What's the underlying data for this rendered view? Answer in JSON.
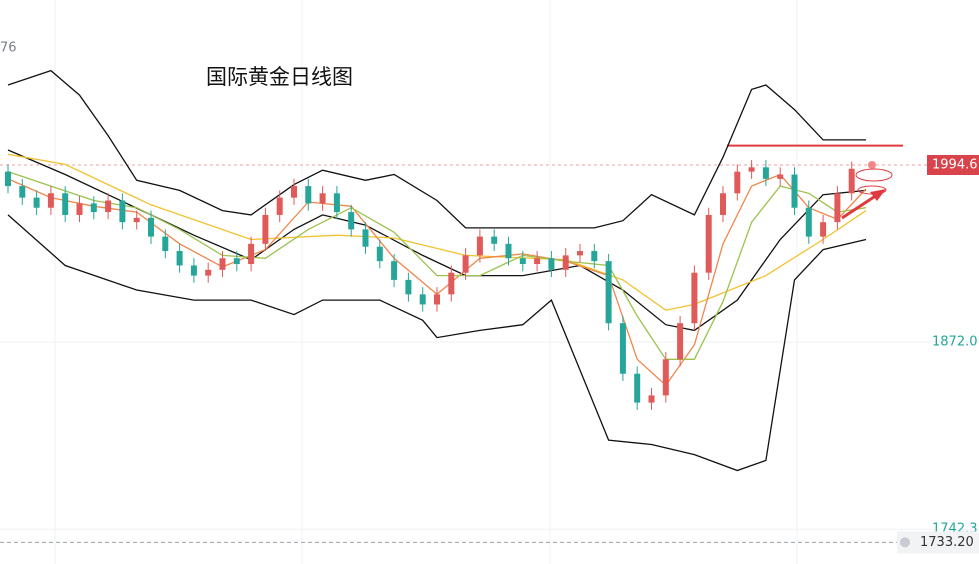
{
  "chart_data": {
    "type": "candlestick",
    "title": "国际黄金日线图",
    "corner_label": "76",
    "ylim": [
      1718.2,
      2108.9
    ],
    "yticks": [
      {
        "value": 1872,
        "label": "1872.0"
      },
      1742.3
    ],
    "last_price": 1994.6,
    "alert_price": {
      "value": 1733.2,
      "label": "1733.20"
    },
    "resistance": 2008,
    "up_color": "#e05a5a",
    "down_color": "#26a69a",
    "open": [
      1990,
      1980,
      1972,
      1965,
      1975,
      1960,
      1968,
      1962,
      1970,
      1955,
      1958,
      1945,
      1935,
      1925,
      1918,
      1922,
      1930,
      1926,
      1940,
      1960,
      1972,
      1980,
      1968,
      1975,
      1962,
      1950,
      1938,
      1928,
      1915,
      1905,
      1898,
      1905,
      1920,
      1932,
      1945,
      1940,
      1930,
      1926,
      1930,
      1922,
      1932,
      1935,
      1928,
      1885,
      1850,
      1830,
      1835,
      1860,
      1885,
      1920,
      1960,
      1975,
      1990,
      1993,
      1985,
      1988,
      1965,
      1945,
      1955,
      1975
    ],
    "high": [
      1995,
      1985,
      1977,
      1980,
      1980,
      1973,
      1973,
      1975,
      1975,
      1963,
      1963,
      1950,
      1940,
      1930,
      1927,
      1935,
      1935,
      1945,
      1965,
      1977,
      1985,
      1985,
      1980,
      1980,
      1967,
      1955,
      1943,
      1933,
      1920,
      1910,
      1910,
      1925,
      1937,
      1950,
      1950,
      1945,
      1935,
      1935,
      1935,
      1937,
      1940,
      1940,
      1933,
      1890,
      1855,
      1840,
      1865,
      1890,
      1925,
      1965,
      1980,
      1995,
      1998,
      1998,
      1993,
      1993,
      1970,
      1960,
      1980,
      1997
    ],
    "low": [
      1975,
      1967,
      1960,
      1960,
      1955,
      1955,
      1957,
      1957,
      1950,
      1950,
      1940,
      1930,
      1920,
      1913,
      1913,
      1917,
      1921,
      1921,
      1935,
      1955,
      1967,
      1963,
      1963,
      1957,
      1945,
      1933,
      1923,
      1910,
      1900,
      1893,
      1893,
      1900,
      1915,
      1927,
      1935,
      1925,
      1921,
      1921,
      1917,
      1917,
      1927,
      1923,
      1880,
      1845,
      1825,
      1825,
      1830,
      1855,
      1880,
      1915,
      1955,
      1970,
      1985,
      1980,
      1980,
      1960,
      1940,
      1940,
      1950,
      1970
    ],
    "close": [
      1980,
      1972,
      1965,
      1975,
      1960,
      1968,
      1962,
      1970,
      1955,
      1958,
      1945,
      1935,
      1925,
      1918,
      1922,
      1930,
      1926,
      1940,
      1960,
      1972,
      1980,
      1968,
      1975,
      1962,
      1950,
      1938,
      1928,
      1915,
      1905,
      1898,
      1905,
      1920,
      1932,
      1945,
      1940,
      1930,
      1926,
      1930,
      1922,
      1932,
      1935,
      1928,
      1885,
      1850,
      1830,
      1835,
      1860,
      1885,
      1920,
      1960,
      1975,
      1990,
      1993,
      1985,
      1988,
      1965,
      1945,
      1955,
      1975,
      1992
    ],
    "lines": [
      {
        "color": "#111111",
        "x": [
          0,
          3,
          5,
          7,
          9,
          12,
          15,
          17,
          20,
          22,
          25,
          27,
          30,
          32,
          35,
          39,
          41,
          43,
          45,
          48,
          50,
          52,
          53,
          55,
          57,
          60
        ],
        "values": [
          2050,
          2060,
          2043,
          2015,
          1984,
          1977,
          1963,
          1960,
          1981,
          1991,
          1984,
          1988,
          1970,
          1951,
          1951,
          1951,
          1951,
          1956,
          1974,
          1960,
          2000,
          2047,
          2050,
          2033,
          2012,
          2012
        ]
      },
      {
        "color": "#111111",
        "x": [
          0,
          4,
          9,
          13,
          17,
          20,
          22,
          26,
          29,
          30,
          33,
          36,
          38,
          42,
          45,
          48,
          51,
          53,
          55,
          57,
          60
        ],
        "values": [
          1960,
          1925,
          1908,
          1901,
          1901,
          1891,
          1901,
          1901,
          1887,
          1875,
          1880,
          1884,
          1901,
          1804,
          1801,
          1794,
          1783,
          1790,
          1915,
          1936,
          1943
        ]
      },
      {
        "color": "#111111",
        "x": [
          0,
          4,
          10,
          13,
          17,
          20,
          22,
          25,
          29,
          32,
          36,
          40,
          43,
          46,
          48,
          51,
          54,
          57,
          60
        ],
        "values": [
          2005,
          1988,
          1960,
          1946,
          1929,
          1950,
          1960,
          1953,
          1932,
          1918,
          1918,
          1925,
          1908,
          1884,
          1880,
          1901,
          1943,
          1974,
          1977
        ]
      },
      {
        "color": "#f2c230",
        "x": [
          0,
          4,
          10,
          17,
          23,
          27,
          32,
          39,
          43,
          46,
          48,
          53,
          57,
          60
        ],
        "values": [
          2002,
          1995,
          1967,
          1943,
          1946,
          1944,
          1932,
          1929,
          1915,
          1894,
          1898,
          1918,
          1943,
          1963
        ]
      },
      {
        "color": "#f0864a",
        "x": [
          0,
          3,
          6,
          9,
          12,
          15,
          18,
          21,
          24,
          27,
          30,
          33,
          36,
          39,
          42,
          44,
          46,
          48,
          50,
          52,
          54,
          56,
          58,
          60
        ],
        "values": [
          1985,
          1972,
          1966,
          1962,
          1940,
          1924,
          1936,
          1969,
          1966,
          1930,
          1905,
          1930,
          1933,
          1928,
          1918,
          1860,
          1842,
          1870,
          1940,
          1980,
          1988,
          1965,
          1957,
          1978
        ]
      },
      {
        "color": "#9cc24d",
        "x": [
          0,
          3,
          6,
          9,
          12,
          15,
          18,
          21,
          24,
          27,
          30,
          33,
          36,
          39,
          42,
          44,
          46,
          48,
          50,
          52,
          54,
          56,
          58,
          60
        ],
        "values": [
          1990,
          1980,
          1970,
          1965,
          1950,
          1932,
          1930,
          1950,
          1965,
          1948,
          1918,
          1918,
          1932,
          1928,
          1925,
          1890,
          1860,
          1860,
          1900,
          1955,
          1980,
          1975,
          1962,
          1965
        ]
      }
    ]
  }
}
